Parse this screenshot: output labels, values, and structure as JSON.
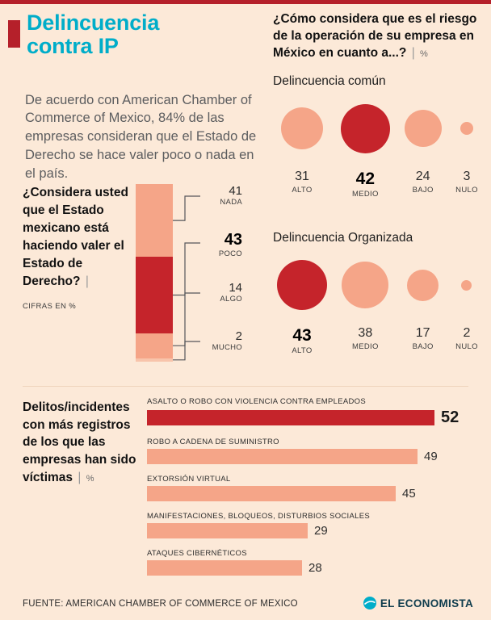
{
  "sep": "|",
  "colors": {
    "background": "#fce9d8",
    "red": "#c5242b",
    "salmon": "#f5a588",
    "salmon_light": "#f8c4ab",
    "cyan": "#00adc9",
    "text": "#5c5d5f"
  },
  "header": {
    "title": "Delincuencia contra IP"
  },
  "intro": "De acuerdo con American Chamber of Commerce of Mexico, 84% de las empresas consideran que el Estado de Derecho se hace valer poco o nada en el país.",
  "risk_header": {
    "question": "¿Cómo considera que es el riesgo de la operación de su empresa en México en cuanto a...?",
    "unit": "%"
  },
  "chart_data": [
    {
      "type": "bar",
      "orientation": "vertical-stacked",
      "title": "¿Considera usted que el Estado mexicano está haciendo valer el Estado de Derecho?",
      "note": "CIFRAS EN %",
      "categories": [
        "NADA",
        "POCO",
        "ALGO",
        "MUCHO"
      ],
      "values": [
        41,
        43,
        14,
        2
      ],
      "highlight_category": "POCO"
    },
    {
      "type": "bubble",
      "title": "Delincuencia común",
      "unit": "%",
      "categories": [
        "ALTO",
        "MEDIO",
        "BAJO",
        "NULO"
      ],
      "values": [
        31,
        42,
        24,
        3
      ],
      "highlight_category": "MEDIO"
    },
    {
      "type": "bubble",
      "title": "Delincuencia Organizada",
      "unit": "%",
      "categories": [
        "ALTO",
        "MEDIO",
        "BAJO",
        "NULO"
      ],
      "values": [
        43,
        38,
        17,
        2
      ],
      "highlight_category": "ALTO"
    },
    {
      "type": "bar",
      "orientation": "horizontal",
      "title": "Delitos/incidentes con más registros de los que las empresas han sido víctimas",
      "unit": "%",
      "categories": [
        "ASALTO O ROBO CON VIOLENCIA CONTRA EMPLEADOS",
        "ROBO A CADENA DE SUMINISTRO",
        "EXTORSIÓN VIRTUAL",
        "MANIFESTACIONES, BLOQUEOS, DISTURBIOS SOCIALES",
        "ATAQUES CIBERNÉTICOS"
      ],
      "values": [
        52,
        49,
        45,
        29,
        28
      ],
      "highlight_category": "ASALTO O ROBO CON VIOLENCIA CONTRA EMPLEADOS"
    }
  ],
  "footer": {
    "source": "FUENTE: AMERICAN CHAMBER OF COMMERCE OF MEXICO",
    "brand": "EL ECONOMISTA"
  }
}
